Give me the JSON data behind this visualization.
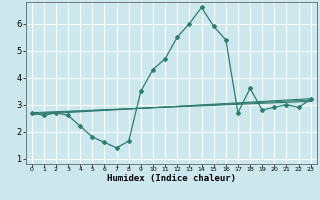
{
  "xlabel": "Humidex (Indice chaleur)",
  "bg_color": "#cce8ee",
  "grid_color": "#ffffff",
  "line_color": "#2e7d6e",
  "xlim": [
    -0.5,
    23.5
  ],
  "ylim": [
    0.8,
    6.8
  ],
  "xticks": [
    0,
    1,
    2,
    3,
    4,
    5,
    6,
    7,
    8,
    9,
    10,
    11,
    12,
    13,
    14,
    15,
    16,
    17,
    18,
    19,
    20,
    21,
    22,
    23
  ],
  "yticks": [
    1,
    2,
    3,
    4,
    5,
    6
  ],
  "main_x": [
    0,
    1,
    2,
    3,
    4,
    5,
    6,
    7,
    8,
    9,
    10,
    11,
    12,
    13,
    14,
    15,
    16,
    17,
    18,
    19,
    20,
    21,
    22,
    23
  ],
  "main_y": [
    2.7,
    2.6,
    2.7,
    2.6,
    2.2,
    1.8,
    1.6,
    1.4,
    1.65,
    3.5,
    4.3,
    4.7,
    5.5,
    6.0,
    6.6,
    5.9,
    5.4,
    2.7,
    3.6,
    2.8,
    2.9,
    3.0,
    2.9,
    3.2
  ],
  "reg_lines": [
    {
      "x": [
        0,
        23
      ],
      "y": [
        2.63,
        3.22
      ]
    },
    {
      "x": [
        0,
        23
      ],
      "y": [
        2.67,
        3.17
      ]
    },
    {
      "x": [
        0,
        23
      ],
      "y": [
        2.7,
        3.12
      ]
    }
  ]
}
